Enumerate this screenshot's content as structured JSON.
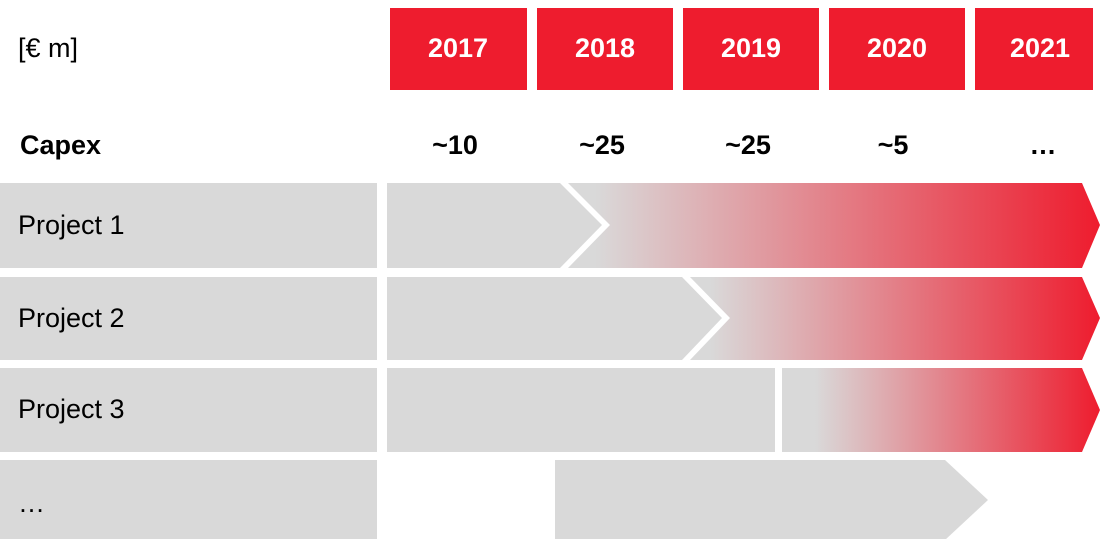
{
  "unit": "[€ m]",
  "years": [
    "2017",
    "2018",
    "2019",
    "2020",
    "2021"
  ],
  "capex": {
    "label": "Capex",
    "values": [
      "~10",
      "~25",
      "~25",
      "~5",
      "…"
    ]
  },
  "projects": [
    "Project 1",
    "Project 2",
    "Project 3",
    "…"
  ]
}
